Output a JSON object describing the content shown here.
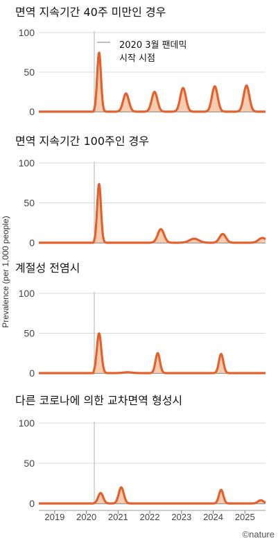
{
  "chart_data": {
    "type": "area",
    "ylabel": "Prevalence (per 1,000 people)",
    "xlim": [
      2018.5,
      2025.65
    ],
    "ylim": [
      0,
      100
    ],
    "yticks": [
      0,
      50,
      100
    ],
    "xticks": [
      2019,
      2020,
      2021,
      2022,
      2023,
      2024,
      2025
    ],
    "xtick_labels": [
      "2019",
      "2020",
      "2021",
      "2022",
      "2023",
      "2024",
      "2025"
    ],
    "pandemic_start": 2020.25,
    "annotation": "2020 3월 팬데믹\n시작 시점",
    "credit": "©nature",
    "colors": {
      "line": "#e2612c",
      "fill": "#f7c7a8",
      "pandemic_line": "#bfbfbf",
      "grid": "#d9d9d9"
    },
    "panels": [
      {
        "title": "면역 지속기간 40주 미만인 경우",
        "peaks": [
          {
            "x": 2020.4,
            "y": 75,
            "width": 0.06
          },
          {
            "x": 2021.25,
            "y": 23,
            "width": 0.09
          },
          {
            "x": 2022.15,
            "y": 25,
            "width": 0.09
          },
          {
            "x": 2023.05,
            "y": 30,
            "width": 0.09
          },
          {
            "x": 2024.05,
            "y": 32,
            "width": 0.09
          },
          {
            "x": 2025.05,
            "y": 33,
            "width": 0.09
          }
        ]
      },
      {
        "title": "면역 지속기간 100주인 경우",
        "peaks": [
          {
            "x": 2020.4,
            "y": 74,
            "width": 0.06
          },
          {
            "x": 2022.35,
            "y": 17,
            "width": 0.1
          },
          {
            "x": 2023.4,
            "y": 5,
            "width": 0.15
          },
          {
            "x": 2024.3,
            "y": 11,
            "width": 0.1
          },
          {
            "x": 2025.55,
            "y": 6,
            "width": 0.12
          }
        ]
      },
      {
        "title": "계절성 전염시",
        "peaks": [
          {
            "x": 2020.4,
            "y": 50,
            "width": 0.07
          },
          {
            "x": 2021.3,
            "y": 1,
            "width": 0.15
          },
          {
            "x": 2022.25,
            "y": 25,
            "width": 0.07
          },
          {
            "x": 2024.25,
            "y": 24,
            "width": 0.07
          }
        ]
      },
      {
        "title": "다른 코로나에 의한 교차면역 형성시",
        "peaks": [
          {
            "x": 2020.45,
            "y": 13,
            "width": 0.08
          },
          {
            "x": 2021.1,
            "y": 20,
            "width": 0.08
          },
          {
            "x": 2024.25,
            "y": 17,
            "width": 0.07
          },
          {
            "x": 2025.5,
            "y": 4,
            "width": 0.09
          }
        ]
      }
    ]
  }
}
